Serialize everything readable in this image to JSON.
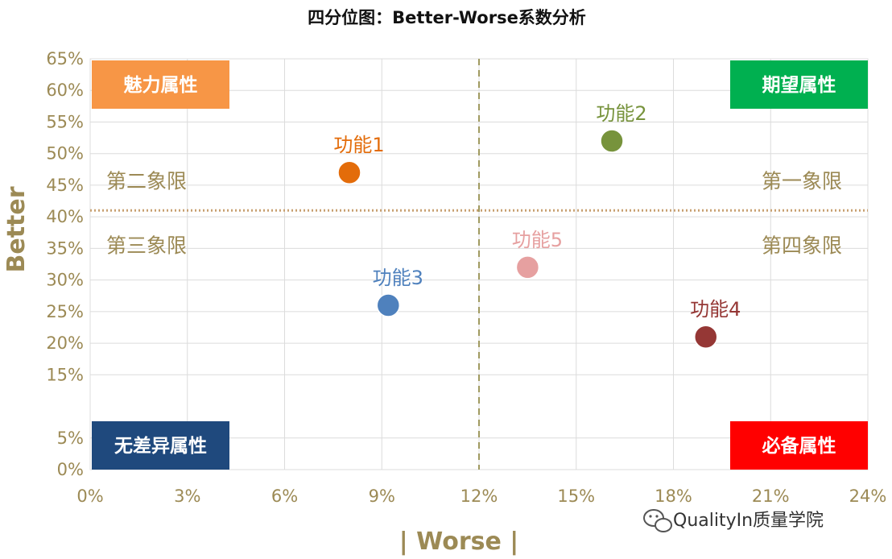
{
  "chart_data": {
    "type": "scatter",
    "title": "四分位图：Better-Worse系数分析",
    "xlabel": "| Worse |",
    "ylabel": "Better",
    "x_ticks": [
      "0%",
      "3%",
      "6%",
      "9%",
      "12%",
      "15%",
      "18%",
      "21%",
      "24%"
    ],
    "y_ticks": [
      "0%",
      "5%",
      "15%",
      "20%",
      "25%",
      "30%",
      "35%",
      "40%",
      "45%",
      "50%",
      "55%",
      "60%",
      "65%"
    ],
    "xlim": [
      0,
      24
    ],
    "ylim": [
      0,
      65
    ],
    "divider_x": 12,
    "divider_y": 41,
    "grid": true,
    "points": [
      {
        "label": "功能1",
        "x": 8.0,
        "y": 47,
        "color": "#e36c0a"
      },
      {
        "label": "功能2",
        "x": 16.1,
        "y": 52,
        "color": "#77933c"
      },
      {
        "label": "功能3",
        "x": 9.2,
        "y": 26,
        "color": "#4f81bd"
      },
      {
        "label": "功能4",
        "x": 19.0,
        "y": 21,
        "color": "#953735"
      },
      {
        "label": "功能5",
        "x": 13.5,
        "y": 32,
        "color": "#e6a0a0"
      }
    ],
    "quadrant_labels": [
      "第一象限",
      "第二象限",
      "第三象限",
      "第四象限"
    ],
    "attribute_boxes": [
      {
        "text": "魅力属性",
        "corner": "top-left",
        "color": "#f79646"
      },
      {
        "text": "期望属性",
        "corner": "top-right",
        "color": "#00b050"
      },
      {
        "text": "无差异属性",
        "corner": "bottom-left",
        "color": "#1f497d"
      },
      {
        "text": "必备属性",
        "corner": "bottom-right",
        "color": "#ff0000"
      }
    ],
    "colors": {
      "grid": "#dcdcdc",
      "divider_x": "#a09a60",
      "divider_y": "#c8a070",
      "text": "#9c8a55"
    }
  },
  "watermark": {
    "text": "QualityIn质量学院",
    "icon": "wechat-icon"
  }
}
